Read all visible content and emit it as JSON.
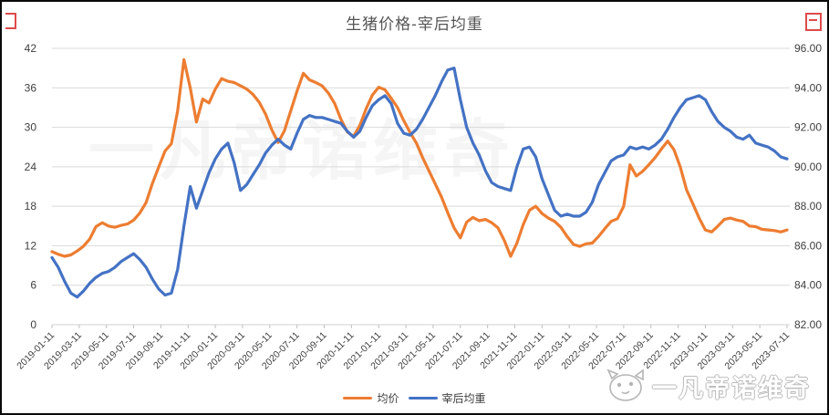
{
  "header": {
    "title": "生猪价格-宰后均重"
  },
  "watermark": {
    "center": "一凡帝诺维奇",
    "corner": "一凡帝诺维奇"
  },
  "legend": {
    "items": [
      {
        "label": "均价",
        "color": "#ED7D31"
      },
      {
        "label": "宰后均重",
        "color": "#4472C4"
      }
    ]
  },
  "chart_data": {
    "type": "line",
    "title": "生猪价格-宰后均重",
    "xlabel": "",
    "ylabel_left": "",
    "ylabel_right": "",
    "grid": true,
    "legend_position": "bottom",
    "x_range": [
      "2019-01-11",
      "2023-07-11"
    ],
    "x_tick_labels": [
      "2019-01-11",
      "2019-03-11",
      "2019-05-11",
      "2019-07-11",
      "2019-09-11",
      "2019-11-11",
      "2020-01-11",
      "2020-03-11",
      "2020-05-11",
      "2020-07-11",
      "2020-09-11",
      "2020-11-11",
      "2021-01-11",
      "2021-03-11",
      "2021-05-11",
      "2021-07-11",
      "2021-09-11",
      "2021-11-11",
      "2022-01-11",
      "2022-03-11",
      "2022-05-11",
      "2022-07-11",
      "2022-09-11",
      "2022-11-11",
      "2023-01-11",
      "2023-03-11",
      "2023-05-11",
      "2023-07-11"
    ],
    "left_axis": {
      "min": 0,
      "max": 42,
      "step": 6,
      "tick_labels": [
        "0",
        "6",
        "12",
        "18",
        "24",
        "30",
        "36",
        "42"
      ]
    },
    "right_axis": {
      "min": 82,
      "max": 96,
      "step": 2,
      "tick_labels": [
        "82.00",
        "84.00",
        "86.00",
        "88.00",
        "90.00",
        "92.00",
        "94.00",
        "96.00"
      ]
    },
    "colors": {
      "price": "#ED7D31",
      "weight": "#4472C4",
      "gridline": "#d9d9d9",
      "axis_text": "#404040"
    },
    "series": [
      {
        "name": "均价",
        "axis": "left",
        "color": "#ED7D31",
        "values": [
          11.1,
          10.7,
          10.4,
          10.6,
          11.2,
          11.9,
          13.0,
          14.9,
          15.5,
          15.0,
          14.8,
          15.1,
          15.3,
          15.9,
          17.0,
          18.6,
          21.5,
          24.0,
          26.4,
          27.5,
          32.5,
          40.3,
          36.0,
          30.8,
          34.3,
          33.7,
          35.8,
          37.4,
          37.0,
          36.8,
          36.3,
          35.8,
          35.0,
          33.8,
          32.0,
          29.6,
          27.7,
          29.5,
          32.5,
          35.5,
          38.2,
          37.2,
          36.8,
          36.3,
          35.2,
          33.6,
          31.2,
          29.3,
          28.6,
          30.3,
          32.8,
          34.9,
          36.1,
          35.7,
          34.4,
          33.0,
          31.0,
          29.2,
          27.6,
          25.4,
          23.4,
          21.4,
          19.4,
          17.0,
          14.7,
          13.2,
          15.6,
          16.3,
          15.8,
          16.0,
          15.5,
          14.7,
          12.8,
          10.4,
          12.4,
          15.2,
          17.4,
          18.0,
          16.9,
          16.2,
          15.7,
          14.8,
          13.4,
          12.2,
          11.9,
          12.3,
          12.4,
          13.4,
          14.6,
          15.7,
          16.1,
          18.0,
          24.3,
          22.6,
          23.3,
          24.3,
          25.4,
          26.7,
          27.9,
          26.6,
          24.0,
          20.5,
          18.4,
          16.2,
          14.4,
          14.1,
          15.0,
          16.0,
          16.2,
          15.9,
          15.7,
          15.0,
          14.9,
          14.5,
          14.4,
          14.3,
          14.1,
          14.4
        ]
      },
      {
        "name": "宰后均重",
        "axis": "right",
        "color": "#4472C4",
        "values": [
          85.4,
          84.9,
          84.2,
          83.6,
          83.4,
          83.7,
          84.1,
          84.4,
          84.6,
          84.7,
          84.9,
          85.2,
          85.4,
          85.6,
          85.3,
          84.9,
          84.3,
          83.8,
          83.5,
          83.6,
          84.8,
          87.0,
          89.0,
          87.9,
          88.8,
          89.7,
          90.4,
          90.9,
          91.2,
          90.2,
          88.8,
          89.1,
          89.6,
          90.1,
          90.7,
          91.1,
          91.4,
          91.1,
          90.9,
          91.7,
          92.4,
          92.6,
          92.5,
          92.5,
          92.4,
          92.3,
          92.2,
          91.8,
          91.5,
          91.8,
          92.5,
          93.1,
          93.4,
          93.6,
          93.2,
          92.2,
          91.7,
          91.6,
          91.9,
          92.4,
          93.0,
          93.6,
          94.3,
          94.9,
          95.0,
          93.4,
          92.0,
          91.2,
          90.6,
          89.8,
          89.2,
          89.0,
          88.9,
          88.8,
          90.0,
          90.9,
          91.0,
          90.5,
          89.4,
          88.6,
          87.8,
          87.5,
          87.6,
          87.5,
          87.5,
          87.7,
          88.2,
          89.1,
          89.7,
          90.3,
          90.5,
          90.6,
          91.0,
          90.9,
          91.0,
          90.9,
          91.1,
          91.4,
          91.9,
          92.5,
          93.0,
          93.4,
          93.5,
          93.6,
          93.4,
          92.8,
          92.3,
          92.0,
          91.8,
          91.5,
          91.4,
          91.6,
          91.2,
          91.1,
          91.0,
          90.8,
          90.5,
          90.4
        ]
      }
    ]
  }
}
